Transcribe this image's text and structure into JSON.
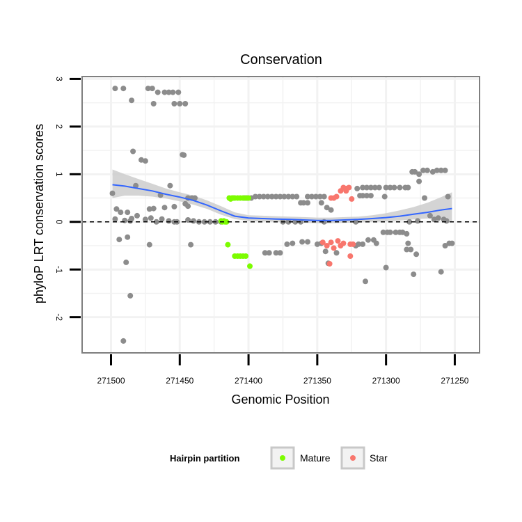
{
  "chart_data": {
    "type": "scatter",
    "title": "Conservation",
    "xlabel": "Genomic Position",
    "ylabel": "phyloP LRT conservation scores",
    "x_reversed": true,
    "xlim": [
      271521,
      271232
    ],
    "ylim": [
      -2.75,
      3.05
    ],
    "x_ticks": [
      271500,
      271450,
      271400,
      271350,
      271300,
      271250
    ],
    "x_tick_labels": [
      "271500",
      "271450",
      "271400",
      "271350",
      "271300",
      "271250"
    ],
    "y_ticks": [
      -2,
      -1,
      0,
      1,
      2,
      3
    ],
    "y_tick_labels": [
      "-2",
      "-1",
      "0",
      "1",
      "2",
      "3"
    ],
    "reference_line": {
      "y": 0,
      "style": "dashed"
    },
    "colors": {
      "other": "#8c8c8c",
      "mature": "#7cfc00",
      "star": "#f8766d",
      "smooth": "#3366ff",
      "band": "#cccccc",
      "grid": "#f2f2f2",
      "frame": "#7f7f7f"
    },
    "legend": {
      "title": "Hairpin partition",
      "position": "bottom",
      "entries": [
        {
          "label": "Mature",
          "color": "#7cfc00"
        },
        {
          "label": "Star",
          "color": "#f8766d"
        }
      ]
    },
    "series": [
      {
        "name": "other",
        "points": [
          [
            271497,
            2.8
          ],
          [
            271491,
            2.8
          ],
          [
            271473,
            2.8
          ],
          [
            271470,
            2.8
          ],
          [
            271466,
            2.72
          ],
          [
            271461,
            2.72
          ],
          [
            271458,
            2.72
          ],
          [
            271455,
            2.72
          ],
          [
            271451,
            2.72
          ],
          [
            271485,
            2.55
          ],
          [
            271469,
            2.48
          ],
          [
            271454,
            2.48
          ],
          [
            271450,
            2.48
          ],
          [
            271446,
            2.48
          ],
          [
            271484,
            1.48
          ],
          [
            271478,
            1.3
          ],
          [
            271475,
            1.28
          ],
          [
            271448,
            1.41
          ],
          [
            271447,
            1.4
          ],
          [
            271482,
            0.76
          ],
          [
            271457,
            0.76
          ],
          [
            271464,
            0.56
          ],
          [
            271472,
            0.27
          ],
          [
            271469,
            0.28
          ],
          [
            271461,
            0.3
          ],
          [
            271454,
            0.32
          ],
          [
            271444,
            0.5
          ],
          [
            271441,
            0.5
          ],
          [
            271439,
            0.5
          ],
          [
            271446,
            0.38
          ],
          [
            271444,
            0.33
          ],
          [
            271499,
            0.6
          ],
          [
            271496,
            0.27
          ],
          [
            271493,
            0.2
          ],
          [
            271488,
            0.2
          ],
          [
            271481,
            0.13
          ],
          [
            271471,
            0.08
          ],
          [
            271497,
            0.06
          ],
          [
            271490,
            0.03
          ],
          [
            271486,
            0.02
          ],
          [
            271485,
            0.07
          ],
          [
            271475,
            0.05
          ],
          [
            271467,
            0.0
          ],
          [
            271463,
            0.06
          ],
          [
            271458,
            0.02
          ],
          [
            271454,
            0.0
          ],
          [
            271452,
            0.0
          ],
          [
            271444,
            0.04
          ],
          [
            271440,
            0.02
          ],
          [
            271436,
            0.0
          ],
          [
            271432,
            0.0
          ],
          [
            271428,
            0.0
          ],
          [
            271424,
            0.0
          ],
          [
            271420,
            0.0
          ],
          [
            271494,
            -0.37
          ],
          [
            271488,
            -0.32
          ],
          [
            271472,
            -0.48
          ],
          [
            271442,
            -0.48
          ],
          [
            271489,
            -0.85
          ],
          [
            271486,
            -1.55
          ],
          [
            271491,
            -2.5
          ],
          [
            271403,
            0.5
          ],
          [
            271401,
            0.5
          ],
          [
            271398,
            0.5
          ],
          [
            271395,
            0.53
          ],
          [
            271392,
            0.53
          ],
          [
            271389,
            0.53
          ],
          [
            271386,
            0.53
          ],
          [
            271383,
            0.53
          ],
          [
            271380,
            0.53
          ],
          [
            271377,
            0.53
          ],
          [
            271374,
            0.53
          ],
          [
            271371,
            0.53
          ],
          [
            271368,
            0.53
          ],
          [
            271365,
            0.53
          ],
          [
            271357,
            0.53
          ],
          [
            271354,
            0.53
          ],
          [
            271351,
            0.53
          ],
          [
            271348,
            0.53
          ],
          [
            271345,
            0.53
          ],
          [
            271362,
            0.4
          ],
          [
            271360,
            0.4
          ],
          [
            271357,
            0.4
          ],
          [
            271347,
            0.4
          ],
          [
            271343,
            0.3
          ],
          [
            271340,
            0.25
          ],
          [
            271375,
            0.0
          ],
          [
            271371,
            0.0
          ],
          [
            271366,
            0.0
          ],
          [
            271362,
            0.0
          ],
          [
            271345,
            0.0
          ],
          [
            271322,
            0.0
          ],
          [
            271388,
            -0.65
          ],
          [
            271385,
            -0.65
          ],
          [
            271380,
            -0.65
          ],
          [
            271377,
            -0.65
          ],
          [
            271372,
            -0.47
          ],
          [
            271368,
            -0.45
          ],
          [
            271361,
            -0.42
          ],
          [
            271357,
            -0.42
          ],
          [
            271350,
            -0.47
          ],
          [
            271347,
            -0.45
          ],
          [
            271344,
            -0.62
          ],
          [
            271342,
            -0.87
          ],
          [
            271336,
            -0.65
          ],
          [
            271322,
            -0.5
          ],
          [
            271320,
            -0.47
          ],
          [
            271317,
            -0.47
          ],
          [
            271313,
            -0.38
          ],
          [
            271309,
            -0.38
          ],
          [
            271307,
            -0.45
          ],
          [
            271302,
            -0.22
          ],
          [
            271299,
            -0.22
          ],
          [
            271297,
            -0.22
          ],
          [
            271293,
            -0.22
          ],
          [
            271290,
            -0.22
          ],
          [
            271288,
            -0.22
          ],
          [
            271285,
            -0.25
          ],
          [
            271284,
            -0.45
          ],
          [
            271285,
            -0.58
          ],
          [
            271300,
            -0.96
          ],
          [
            271315,
            -1.25
          ],
          [
            271282,
            -0.58
          ],
          [
            271321,
            0.7
          ],
          [
            271317,
            0.72
          ],
          [
            271314,
            0.72
          ],
          [
            271311,
            0.72
          ],
          [
            271308,
            0.72
          ],
          [
            271305,
            0.72
          ],
          [
            271300,
            0.72
          ],
          [
            271297,
            0.72
          ],
          [
            271294,
            0.72
          ],
          [
            271290,
            0.72
          ],
          [
            271286,
            0.72
          ],
          [
            271284,
            0.72
          ],
          [
            271301,
            0.53
          ],
          [
            271319,
            0.55
          ],
          [
            271317,
            0.55
          ],
          [
            271314,
            0.55
          ],
          [
            271311,
            0.55
          ],
          [
            271281,
            1.05
          ],
          [
            271279,
            1.05
          ],
          [
            271276,
            1.0
          ],
          [
            271273,
            1.08
          ],
          [
            271270,
            1.08
          ],
          [
            271266,
            1.05
          ],
          [
            271263,
            1.08
          ],
          [
            271260,
            1.08
          ],
          [
            271257,
            1.08
          ],
          [
            271276,
            0.85
          ],
          [
            271272,
            0.5
          ],
          [
            271268,
            0.13
          ],
          [
            271265,
            0.05
          ],
          [
            271262,
            0.08
          ],
          [
            271258,
            0.05
          ],
          [
            271256,
            0.02
          ],
          [
            271277,
            0.02
          ],
          [
            271283,
            0.0
          ],
          [
            271255,
            0.53
          ],
          [
            271278,
            -0.68
          ],
          [
            271280,
            -1.1
          ],
          [
            271260,
            -1.05
          ],
          [
            271257,
            -0.5
          ],
          [
            271254,
            -0.45
          ],
          [
            271252,
            -0.45
          ]
        ]
      },
      {
        "name": "Mature",
        "points": [
          [
            271414,
            0.5
          ],
          [
            271412,
            0.5
          ],
          [
            271410,
            0.5
          ],
          [
            271408,
            0.5
          ],
          [
            271406,
            0.5
          ],
          [
            271404,
            0.5
          ],
          [
            271402,
            0.5
          ],
          [
            271400,
            0.5
          ],
          [
            271413,
            0.48
          ],
          [
            271411,
            0.5
          ],
          [
            271418,
            0.02
          ],
          [
            271417,
            0.0
          ],
          [
            271416,
            0.0
          ],
          [
            271419,
            0.0
          ],
          [
            271420,
            0.02
          ],
          [
            271415,
            -0.48
          ],
          [
            271410,
            -0.72
          ],
          [
            271408,
            -0.72
          ],
          [
            271406,
            -0.72
          ],
          [
            271404,
            -0.72
          ],
          [
            271402,
            -0.72
          ],
          [
            271399,
            -0.93
          ]
        ]
      },
      {
        "name": "Star",
        "points": [
          [
            271340,
            0.5
          ],
          [
            271338,
            0.5
          ],
          [
            271336,
            0.53
          ],
          [
            271333,
            0.65
          ],
          [
            271331,
            0.72
          ],
          [
            271329,
            0.7
          ],
          [
            271327,
            0.72
          ],
          [
            271325,
            0.48
          ],
          [
            271329,
            0.65
          ],
          [
            271346,
            -0.43
          ],
          [
            271343,
            -0.5
          ],
          [
            271340,
            -0.43
          ],
          [
            271338,
            -0.55
          ],
          [
            271335,
            -0.4
          ],
          [
            271333,
            -0.5
          ],
          [
            271331,
            -0.45
          ],
          [
            271326,
            -0.47
          ],
          [
            271324,
            -0.47
          ],
          [
            271326,
            -0.72
          ],
          [
            271341,
            -0.88
          ]
        ]
      }
    ],
    "smooth_fit": {
      "x": [
        271499,
        271490,
        271480,
        271470,
        271460,
        271450,
        271440,
        271430,
        271420,
        271410,
        271400,
        271390,
        271380,
        271370,
        271360,
        271350,
        271340,
        271330,
        271320,
        271310,
        271300,
        271290,
        271280,
        271270,
        271260,
        271252
      ],
      "y": [
        0.78,
        0.75,
        0.7,
        0.65,
        0.58,
        0.52,
        0.45,
        0.35,
        0.23,
        0.12,
        0.08,
        0.07,
        0.06,
        0.05,
        0.04,
        0.03,
        0.03,
        0.04,
        0.05,
        0.07,
        0.09,
        0.12,
        0.16,
        0.2,
        0.25,
        0.28
      ],
      "ci_low": [
        0.5,
        0.55,
        0.55,
        0.53,
        0.49,
        0.43,
        0.36,
        0.27,
        0.15,
        0.06,
        0.02,
        0.01,
        0.0,
        -0.01,
        -0.02,
        -0.03,
        -0.03,
        -0.02,
        -0.01,
        0.0,
        0.01,
        0.03,
        0.05,
        0.07,
        0.08,
        0.0
      ],
      "ci_high": [
        1.1,
        1.0,
        0.9,
        0.8,
        0.7,
        0.62,
        0.55,
        0.45,
        0.33,
        0.2,
        0.14,
        0.13,
        0.12,
        0.11,
        0.1,
        0.09,
        0.09,
        0.1,
        0.11,
        0.14,
        0.18,
        0.24,
        0.31,
        0.4,
        0.52,
        0.62
      ]
    }
  }
}
